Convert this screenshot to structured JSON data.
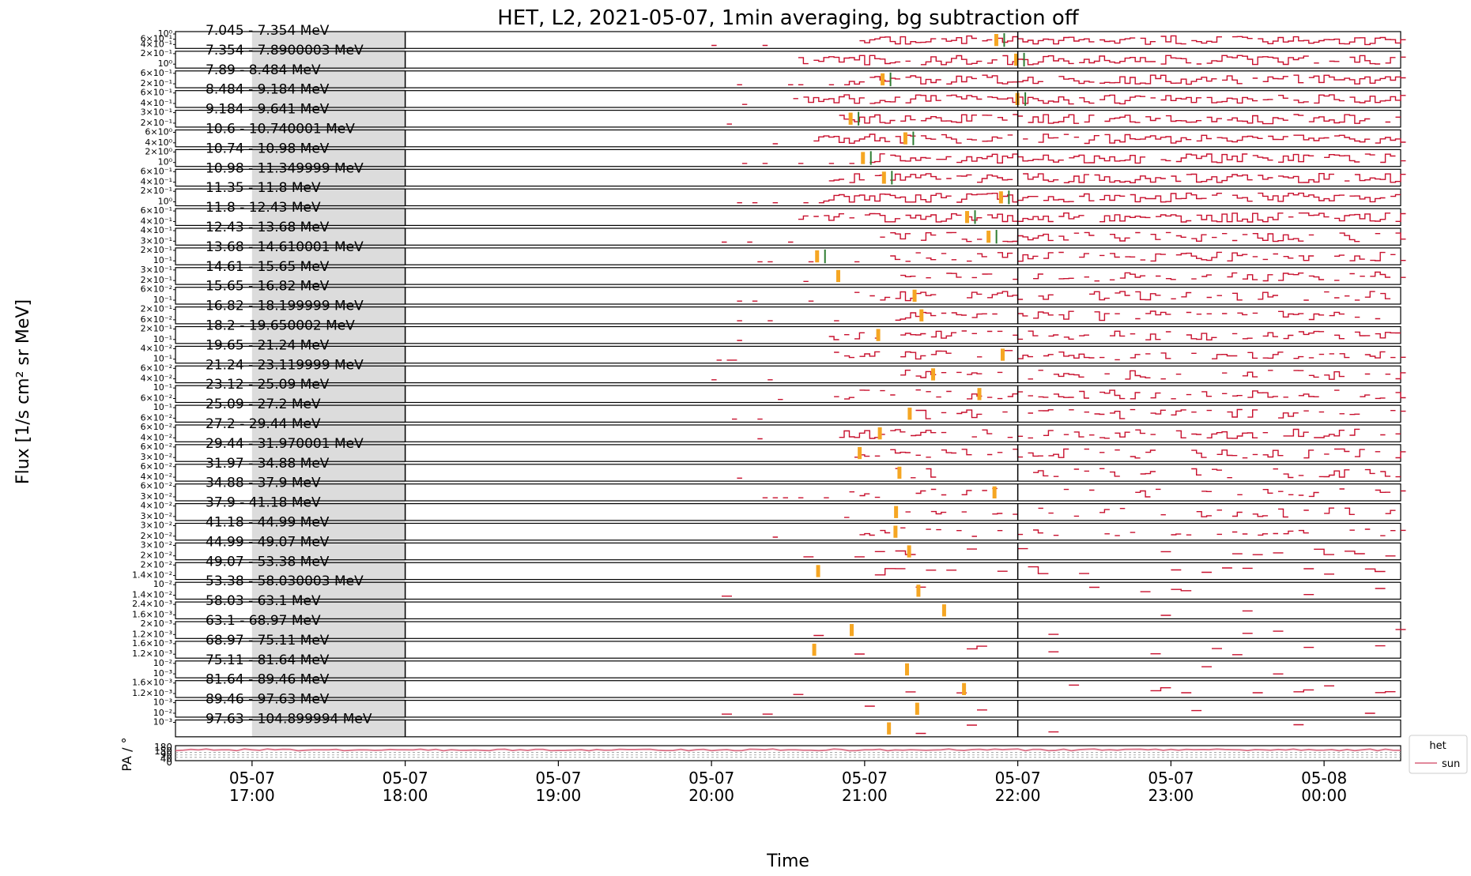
{
  "chart_data": {
    "type": "line",
    "title": "HET, L2, 2021-05-07, 1min averaging, bg subtraction off",
    "xlabel": "Time",
    "ylabel": "Flux [1/s cm² sr MeV]",
    "pa_ylabel": "PA / °",
    "x_ticks": [
      {
        "date": "05-07",
        "time": "17:00"
      },
      {
        "date": "05-07",
        "time": "18:00"
      },
      {
        "date": "05-07",
        "time": "19:00"
      },
      {
        "date": "05-07",
        "time": "20:00"
      },
      {
        "date": "05-07",
        "time": "21:00"
      },
      {
        "date": "05-07",
        "time": "22:00"
      },
      {
        "date": "05-07",
        "time": "23:00"
      },
      {
        "date": "05-08",
        "time": "00:00"
      }
    ],
    "x_range": [
      "2021-05-07 16:30",
      "2021-05-08 00:30"
    ],
    "shaded_interval": [
      "2021-05-07 17:00",
      "2021-05-07 18:00"
    ],
    "vertical_lines": [
      "2021-05-07 18:00",
      "2021-05-07 22:00"
    ],
    "channels": [
      "7.045 - 7.354 MeV",
      "7.354 - 7.8900003 MeV",
      "7.89 - 8.484 MeV",
      "8.484 - 9.184 MeV",
      "9.184 - 9.641 MeV",
      "10.6 - 10.740001 MeV",
      "10.74 - 10.98 MeV",
      "10.98 - 11.349999 MeV",
      "11.35 - 11.8 MeV",
      "11.8 - 12.43 MeV",
      "12.43 - 13.68 MeV",
      "13.68 - 14.610001 MeV",
      "14.61 - 15.65 MeV",
      "15.65 - 16.82 MeV",
      "16.82 - 18.199999 MeV",
      "18.2 - 19.650002 MeV",
      "19.65 - 21.24 MeV",
      "21.24 - 23.119999 MeV",
      "23.12 - 25.09 MeV",
      "25.09 - 27.2 MeV",
      "27.2 - 29.44 MeV",
      "29.44 - 31.970001 MeV",
      "31.97 - 34.88 MeV",
      "34.88 - 37.9 MeV",
      "37.9 - 41.18 MeV",
      "41.18 - 44.99 MeV",
      "44.99 - 49.07 MeV",
      "49.07 - 53.38 MeV",
      "53.38 - 58.030003 MeV",
      "58.03 - 63.1 MeV",
      "63.1 - 68.97 MeV",
      "68.97 - 75.11 MeV",
      "75.11 - 81.64 MeV",
      "81.64 - 89.46 MeV",
      "89.46 - 97.63 MeV",
      "97.63 - 104.899994 MeV"
    ],
    "channel_ytick_labels": [
      [
        "10⁰",
        "6×10⁻¹",
        "4×10⁻¹"
      ],
      [
        "2×10⁻¹",
        "10⁰"
      ],
      [
        "6×10⁻¹",
        "2×10⁻¹"
      ],
      [
        "6×10⁻¹",
        "4×10⁻¹"
      ],
      [
        "3×10⁻¹",
        "2×10⁻¹"
      ],
      [
        "6×10⁰",
        "4×10⁰"
      ],
      [
        "2×10⁰",
        "10⁰"
      ],
      [
        "6×10⁻¹",
        "4×10⁻¹"
      ],
      [
        "2×10⁻¹",
        "10⁰"
      ],
      [
        "6×10⁻¹",
        "4×10⁻¹"
      ],
      [
        "4×10⁻¹",
        "3×10⁻¹"
      ],
      [
        "2×10⁻¹",
        "10⁻¹"
      ],
      [
        "3×10⁻¹",
        "2×10⁻¹"
      ],
      [
        "6×10⁻²",
        "10⁻¹"
      ],
      [
        "2×10⁻¹",
        "6×10⁻²"
      ],
      [
        "2×10⁻¹",
        "10⁻¹"
      ],
      [
        "4×10⁻²",
        "10⁻¹"
      ],
      [
        "6×10⁻²",
        "4×10⁻²"
      ],
      [
        "10⁻¹",
        "6×10⁻²"
      ],
      [
        "10⁻¹",
        "6×10⁻²"
      ],
      [
        "6×10⁻²",
        "4×10⁻²"
      ],
      [
        "6×10⁻²",
        "3×10⁻²"
      ],
      [
        "6×10⁻²",
        "4×10⁻²"
      ],
      [
        "6×10⁻²",
        "3×10⁻²"
      ],
      [
        "4×10⁻²",
        "3×10⁻²"
      ],
      [
        "3×10⁻²",
        "2×10⁻²"
      ],
      [
        "3×10⁻²",
        "2×10⁻²"
      ],
      [
        "2×10⁻²",
        "1.4×10⁻²"
      ],
      [
        "10⁻²",
        "1.4×10⁻²"
      ],
      [
        "2.4×10⁻³",
        "1.6×10⁻³"
      ],
      [
        "2×10⁻³",
        "1.2×10⁻³"
      ],
      [
        "1.6×10⁻³",
        "1.2×10⁻³"
      ],
      [
        "10⁻²",
        "10⁻³"
      ],
      [
        "1.6×10⁻³",
        "1.2×10⁻³"
      ],
      [
        "10⁻³",
        "10⁻²"
      ],
      [
        "10⁻³"
      ]
    ],
    "pa_ylim": [
      0,
      180
    ],
    "pa_ytick_labels": [
      "180",
      "150",
      "90",
      "40",
      "0"
    ],
    "legend": {
      "title": "het",
      "entries": [
        {
          "name": "sun",
          "color": "#d9627a"
        }
      ],
      "placement": "outside-right"
    },
    "colors": {
      "flux": "#c8102e",
      "onset_marker": "#f5a623",
      "peak_marker": "#2e7d32",
      "shade": "#dcdcdc",
      "pa": "#d9627a"
    },
    "grid": false
  }
}
